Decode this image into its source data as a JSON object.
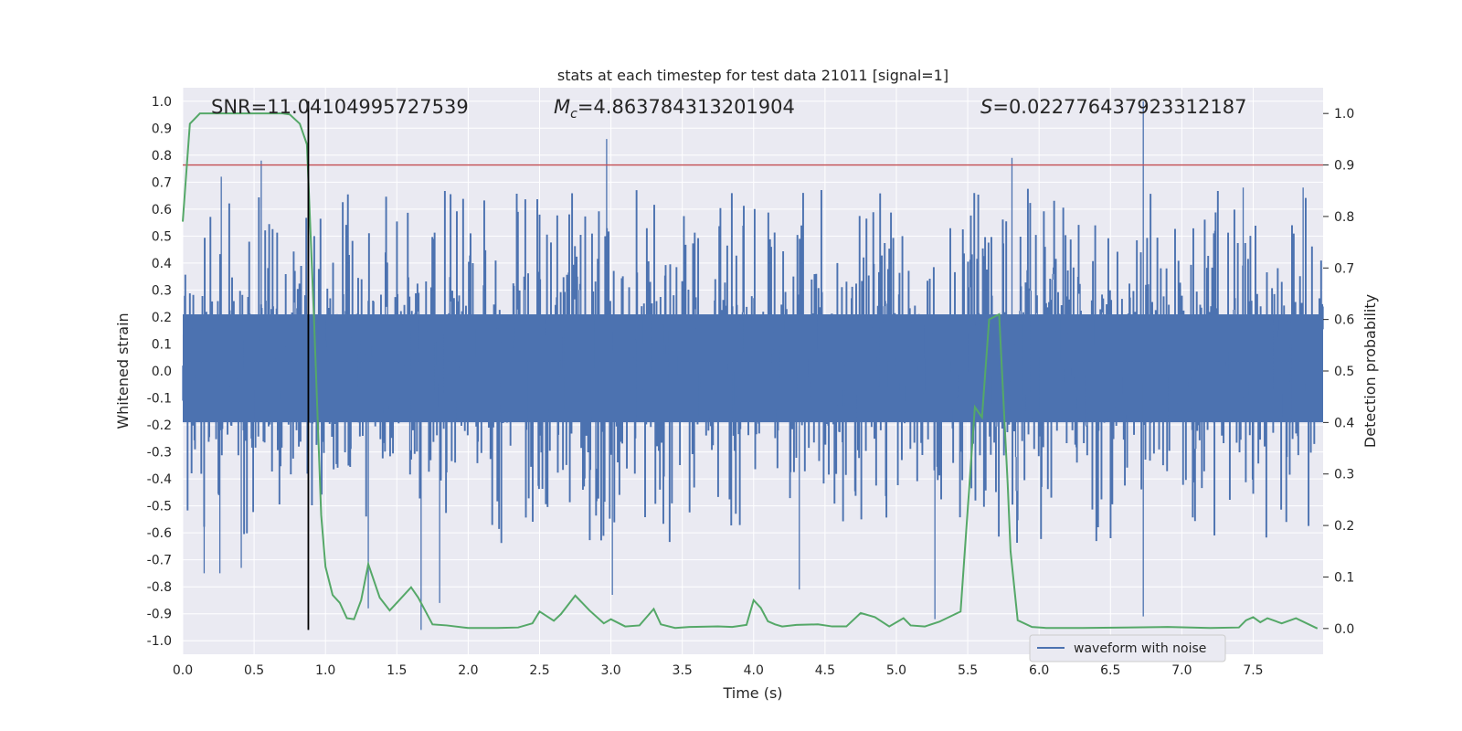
{
  "chart_data": {
    "type": "line",
    "title": "stats at each timestep for test data 21011 [signal=1]",
    "xlabel": "Time (s)",
    "ylabel_left": "Whitened strain",
    "ylabel_right": "Detection probability",
    "xlim": [
      0.0,
      7.99
    ],
    "ylim_left": [
      -1.05,
      1.05
    ],
    "ylim_right": [
      -0.05,
      1.05
    ],
    "x_ticks": [
      "0.0",
      "0.5",
      "1.0",
      "1.5",
      "2.0",
      "2.5",
      "3.0",
      "3.5",
      "4.0",
      "4.5",
      "5.0",
      "5.5",
      "6.0",
      "6.5",
      "7.0",
      "7.5"
    ],
    "y_ticks_left": [
      "1.0",
      "0.9",
      "0.8",
      "0.7",
      "0.6",
      "0.5",
      "0.4",
      "0.3",
      "0.2",
      "0.1",
      "0.0",
      "-0.1",
      "-0.2",
      "-0.3",
      "-0.4",
      "-0.5",
      "-0.6",
      "-0.7",
      "-0.8",
      "-0.9",
      "-1.0"
    ],
    "y_ticks_right": [
      "1.0",
      "0.9",
      "0.8",
      "0.7",
      "0.6",
      "0.5",
      "0.4",
      "0.3",
      "0.2",
      "0.1",
      "0.0"
    ],
    "annotations": {
      "snr": "SNR=11.04104995727539",
      "mc_symbol": "M",
      "mc_subscript": "c",
      "mc_value": "=4.863784313201904",
      "s_symbol": "S",
      "s_value": "=0.022776437923312187"
    },
    "threshold": {
      "value": 0.9,
      "axis": "right",
      "color": "#c44e52"
    },
    "event_marker": {
      "x": 0.88,
      "y_range": [
        -0.96,
        1.0
      ],
      "color": "#000000"
    },
    "series": [
      {
        "name": "waveform with noise",
        "color": "#4c72b0",
        "kind": "noise-band",
        "x_range": [
          0.0,
          7.99
        ],
        "typical_band": [
          -0.38,
          0.42
        ],
        "peaks_high": [
          [
            0.27,
            0.72
          ],
          [
            0.55,
            0.78
          ],
          [
            0.88,
            0.68
          ],
          [
            2.97,
            0.86
          ],
          [
            5.81,
            0.79
          ],
          [
            6.73,
            1.0
          ],
          [
            7.43,
            0.68
          ],
          [
            7.85,
            0.68
          ]
        ],
        "peaks_low": [
          [
            0.15,
            -0.75
          ],
          [
            0.26,
            -0.75
          ],
          [
            0.41,
            -0.73
          ],
          [
            1.3,
            -0.88
          ],
          [
            1.67,
            -0.96
          ],
          [
            1.8,
            -0.86
          ],
          [
            3.01,
            -0.83
          ],
          [
            4.32,
            -0.81
          ],
          [
            5.27,
            -0.92
          ],
          [
            6.73,
            -0.91
          ]
        ]
      },
      {
        "name": "Detection probability",
        "color": "#55a868",
        "axis": "right",
        "x": [
          0.0,
          0.05,
          0.12,
          0.2,
          0.3,
          0.4,
          0.5,
          0.6,
          0.7,
          0.75,
          0.82,
          0.87,
          0.92,
          0.97,
          1.0,
          1.05,
          1.1,
          1.15,
          1.2,
          1.25,
          1.3,
          1.38,
          1.45,
          1.5,
          1.6,
          1.65,
          1.75,
          1.85,
          2.0,
          2.2,
          2.35,
          2.45,
          2.5,
          2.6,
          2.65,
          2.75,
          2.85,
          2.95,
          3.0,
          3.1,
          3.2,
          3.3,
          3.35,
          3.45,
          3.55,
          3.75,
          3.85,
          3.95,
          4.0,
          4.05,
          4.1,
          4.15,
          4.2,
          4.3,
          4.45,
          4.55,
          4.65,
          4.75,
          4.85,
          4.95,
          5.05,
          5.1,
          5.2,
          5.3,
          5.45,
          5.55,
          5.6,
          5.65,
          5.72,
          5.78,
          5.8,
          5.85,
          5.95,
          6.05,
          6.3,
          6.6,
          6.9,
          7.2,
          7.4,
          7.45,
          7.5,
          7.55,
          7.6,
          7.7,
          7.8,
          7.95
        ],
        "y": [
          0.79,
          0.98,
          1.0,
          1.0,
          1.0,
          1.0,
          1.0,
          1.0,
          1.0,
          0.998,
          0.98,
          0.94,
          0.6,
          0.22,
          0.12,
          0.065,
          0.05,
          0.02,
          0.018,
          0.055,
          0.125,
          0.06,
          0.035,
          0.05,
          0.08,
          0.06,
          0.008,
          0.006,
          0.001,
          0.001,
          0.002,
          0.01,
          0.033,
          0.015,
          0.028,
          0.064,
          0.035,
          0.01,
          0.018,
          0.004,
          0.006,
          0.038,
          0.008,
          0.001,
          0.003,
          0.004,
          0.003,
          0.007,
          0.055,
          0.04,
          0.014,
          0.008,
          0.004,
          0.007,
          0.008,
          0.004,
          0.004,
          0.03,
          0.022,
          0.004,
          0.02,
          0.006,
          0.004,
          0.013,
          0.033,
          0.43,
          0.41,
          0.6,
          0.61,
          0.28,
          0.15,
          0.016,
          0.003,
          0.001,
          0.001,
          0.002,
          0.003,
          0.001,
          0.002,
          0.016,
          0.022,
          0.012,
          0.02,
          0.01,
          0.02,
          0.0
        ]
      }
    ],
    "legend": {
      "placement": "lower-right",
      "entries": [
        "waveform with noise"
      ]
    },
    "grid": true,
    "style": {
      "axes_bg": "#eaeaf2",
      "grid_color": "#ffffff"
    }
  }
}
